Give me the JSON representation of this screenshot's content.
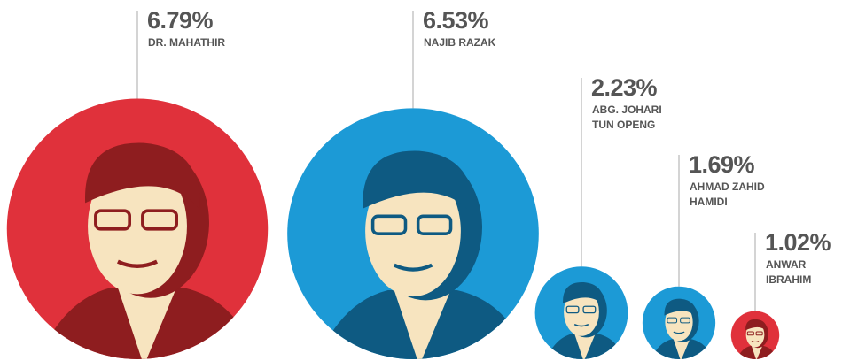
{
  "chart_data": {
    "type": "bubble",
    "categories": [
      "DR. MAHATHIR",
      "NAJIB RAZAK",
      "ABG. JOHARI\nTUN OPENG",
      "AHMAD ZAHID\nHAMIDI",
      "ANWAR\nIBRAHIM"
    ],
    "values": [
      6.79,
      6.53,
      2.23,
      1.69,
      1.02
    ],
    "value_labels": [
      "6.79%",
      "6.53%",
      "2.23%",
      "1.69%",
      "1.02%"
    ],
    "colors": [
      "#e0313b",
      "#1c9ad6",
      "#1c9ad6",
      "#1c9ad6",
      "#e0313b"
    ]
  }
}
